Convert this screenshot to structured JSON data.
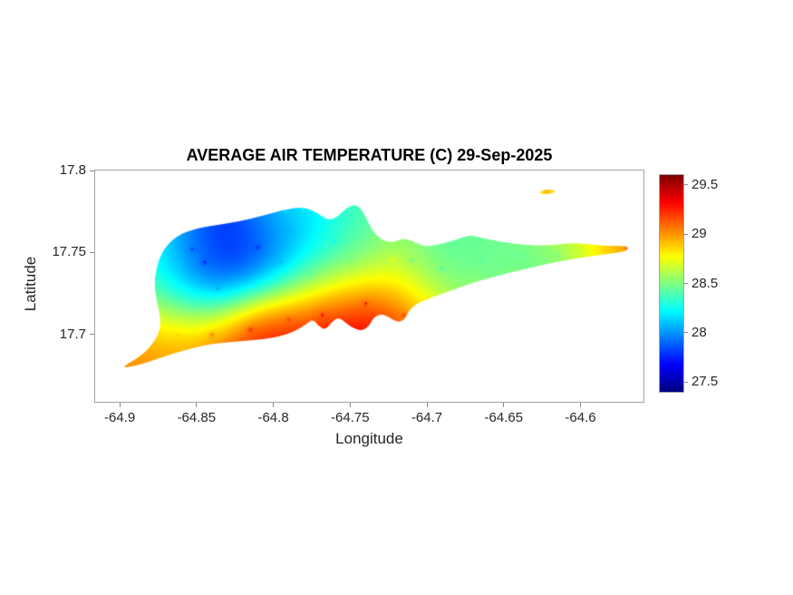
{
  "chart_data": {
    "type": "heatmap",
    "title": "AVERAGE AIR TEMPERATURE (C) 29-Sep-2025",
    "xlabel": "Longitude",
    "ylabel": "Latitude",
    "xlim": [
      -64.916,
      -64.559
    ],
    "ylim": [
      17.659,
      17.8
    ],
    "xticks": [
      -64.9,
      -64.85,
      -64.8,
      -64.75,
      -64.7,
      -64.65,
      -64.6
    ],
    "xtick_labels": [
      "-64.9",
      "-64.85",
      "-64.8",
      "-64.75",
      "-64.7",
      "-64.65",
      "-64.6"
    ],
    "yticks": [
      17.7,
      17.75,
      17.8
    ],
    "ytick_labels": [
      "17.7",
      "17.75",
      "17.8"
    ],
    "grid": false,
    "colorbar": {
      "clim": [
        27.4,
        29.6
      ],
      "ticks": [
        27.5,
        28,
        28.5,
        29,
        29.5
      ],
      "tick_labels": [
        "27.5",
        "28",
        "28.5",
        "29",
        "29.5"
      ],
      "colormap": "jet",
      "position": "right"
    },
    "island_outline": [
      [
        -64.8994,
        17.6796
      ],
      [
        -64.8865,
        17.6867
      ],
      [
        -64.8776,
        17.695
      ],
      [
        -64.8729,
        17.705
      ],
      [
        -64.8747,
        17.716
      ],
      [
        -64.8776,
        17.7282
      ],
      [
        -64.8765,
        17.7403
      ],
      [
        -64.8718,
        17.7519
      ],
      [
        -64.8629,
        17.7602
      ],
      [
        -64.8512,
        17.7646
      ],
      [
        -64.8365,
        17.7668
      ],
      [
        -64.8218,
        17.7691
      ],
      [
        -64.8071,
        17.7724
      ],
      [
        -64.7924,
        17.7762
      ],
      [
        -64.7806,
        17.7779
      ],
      [
        -64.7718,
        17.7746
      ],
      [
        -64.7647,
        17.7696
      ],
      [
        -64.7588,
        17.7713
      ],
      [
        -64.7524,
        17.7773
      ],
      [
        -64.7465,
        17.7796
      ],
      [
        -64.7424,
        17.7762
      ],
      [
        -64.7388,
        17.7696
      ],
      [
        -64.7353,
        17.763
      ],
      [
        -64.7306,
        17.7586
      ],
      [
        -64.7235,
        17.7558
      ],
      [
        -64.7159,
        17.7586
      ],
      [
        -64.71,
        17.7575
      ],
      [
        -64.7024,
        17.7536
      ],
      [
        -64.6924,
        17.7547
      ],
      [
        -64.6806,
        17.758
      ],
      [
        -64.6718,
        17.7608
      ],
      [
        -64.6629,
        17.7586
      ],
      [
        -64.6512,
        17.7564
      ],
      [
        -64.6365,
        17.7547
      ],
      [
        -64.6218,
        17.7541
      ],
      [
        -64.6071,
        17.7558
      ],
      [
        -64.5941,
        17.7552
      ],
      [
        -64.5847,
        17.7541
      ],
      [
        -64.5688,
        17.7541
      ],
      [
        -64.5694,
        17.7508
      ],
      [
        -64.5824,
        17.7492
      ],
      [
        -64.5953,
        17.7475
      ],
      [
        -64.61,
        17.7453
      ],
      [
        -64.6247,
        17.7425
      ],
      [
        -64.6394,
        17.7392
      ],
      [
        -64.6541,
        17.7359
      ],
      [
        -64.6688,
        17.732
      ],
      [
        -64.6835,
        17.7271
      ],
      [
        -64.6965,
        17.7227
      ],
      [
        -64.7059,
        17.7193
      ],
      [
        -64.7118,
        17.7149
      ],
      [
        -64.7141,
        17.7094
      ],
      [
        -64.7188,
        17.7072
      ],
      [
        -64.7247,
        17.7105
      ],
      [
        -64.7294,
        17.7127
      ],
      [
        -64.7347,
        17.7105
      ],
      [
        -64.7376,
        17.705
      ],
      [
        -64.7424,
        17.7022
      ],
      [
        -64.7482,
        17.7039
      ],
      [
        -64.7529,
        17.7072
      ],
      [
        -64.7576,
        17.7105
      ],
      [
        -64.7624,
        17.7072
      ],
      [
        -64.7659,
        17.7028
      ],
      [
        -64.7706,
        17.705
      ],
      [
        -64.7741,
        17.7094
      ],
      [
        -64.7788,
        17.7061
      ],
      [
        -64.7865,
        17.7017
      ],
      [
        -64.7953,
        17.6989
      ],
      [
        -64.8071,
        17.6972
      ],
      [
        -64.82,
        17.6961
      ],
      [
        -64.8335,
        17.695
      ],
      [
        -64.8453,
        17.6934
      ],
      [
        -64.8571,
        17.6906
      ],
      [
        -64.8688,
        17.6873
      ],
      [
        -64.8806,
        17.6834
      ],
      [
        -64.8906,
        17.6807
      ]
    ],
    "buck_island_outline": [
      [
        -64.627,
        17.7865
      ],
      [
        -64.6245,
        17.788
      ],
      [
        -64.62,
        17.7885
      ],
      [
        -64.616,
        17.7875
      ],
      [
        -64.6185,
        17.786
      ],
      [
        -64.624,
        17.7855
      ]
    ],
    "points": [
      [
        -64.845,
        17.744,
        27.45
      ],
      [
        -64.853,
        17.752,
        27.7
      ],
      [
        -64.81,
        17.753,
        27.55
      ],
      [
        -64.795,
        17.744,
        27.95
      ],
      [
        -64.825,
        17.757,
        27.85
      ],
      [
        -64.79,
        17.764,
        28.0
      ],
      [
        -64.836,
        17.728,
        27.9
      ],
      [
        -64.861,
        17.742,
        28.15
      ],
      [
        -64.87,
        17.757,
        28.4
      ],
      [
        -64.878,
        17.738,
        28.5
      ],
      [
        -64.876,
        17.722,
        28.5
      ],
      [
        -64.862,
        17.7,
        28.9
      ],
      [
        -64.885,
        17.69,
        29.0
      ],
      [
        -64.899,
        17.68,
        29.1
      ],
      [
        -64.883,
        17.684,
        29.0
      ],
      [
        -64.84,
        17.7,
        29.2
      ],
      [
        -64.815,
        17.703,
        29.45
      ],
      [
        -64.79,
        17.709,
        29.3
      ],
      [
        -64.768,
        17.712,
        29.55
      ],
      [
        -64.752,
        17.705,
        29.5
      ],
      [
        -64.74,
        17.719,
        29.45
      ],
      [
        -64.715,
        17.712,
        29.3
      ],
      [
        -64.722,
        17.746,
        29.0
      ],
      [
        -64.76,
        17.731,
        28.7
      ],
      [
        -64.776,
        17.736,
        28.3
      ],
      [
        -64.75,
        17.746,
        28.3
      ],
      [
        -64.745,
        17.767,
        28.4
      ],
      [
        -64.76,
        17.757,
        28.0
      ],
      [
        -64.735,
        17.757,
        28.5
      ],
      [
        -64.792,
        17.775,
        28.2
      ],
      [
        -64.781,
        17.777,
        28.3
      ],
      [
        -64.746,
        17.779,
        28.4
      ],
      [
        -64.71,
        17.745,
        28.2
      ],
      [
        -64.69,
        17.74,
        28.2
      ],
      [
        -64.665,
        17.745,
        28.3
      ],
      [
        -64.64,
        17.748,
        28.35
      ],
      [
        -64.615,
        17.748,
        28.4
      ],
      [
        -64.6,
        17.75,
        28.6
      ],
      [
        -64.585,
        17.752,
        28.9
      ],
      [
        -64.57,
        17.753,
        29.2
      ],
      [
        -64.7,
        17.722,
        28.9
      ],
      [
        -64.67,
        17.733,
        28.7
      ],
      [
        -64.645,
        17.739,
        28.6
      ],
      [
        -64.672,
        17.76,
        28.5
      ],
      [
        -64.622,
        17.787,
        29.0
      ]
    ]
  }
}
